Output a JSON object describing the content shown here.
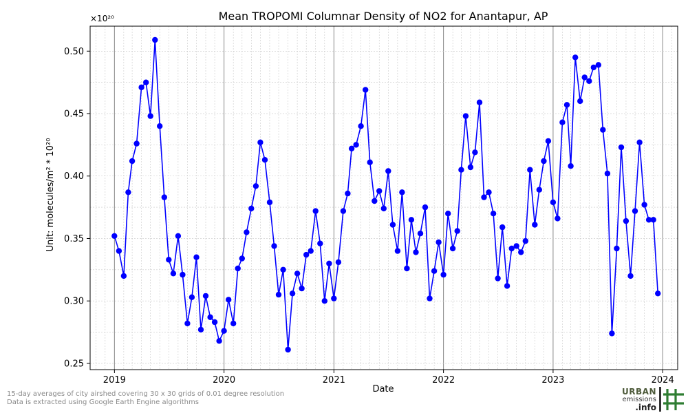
{
  "chart_data": {
    "type": "line",
    "title": "Mean TROPOMI Columnar Density of NO2 for Anantapur, AP",
    "xlabel": "Date",
    "ylabel": "Unit: molecules/m² * 10²⁰",
    "y_multiplier_label": "×10²⁰",
    "x_ticks": [
      "2019",
      "2020",
      "2021",
      "2022",
      "2023",
      "2024"
    ],
    "y_ticks": [
      "0.25",
      "0.30",
      "0.35",
      "0.40",
      "0.45",
      "0.50"
    ],
    "ylim": [
      0.245,
      0.52
    ],
    "xlim": [
      "2018-10-12",
      "2024-02-20"
    ],
    "grid": true,
    "series": [
      {
        "color": "#0000ff",
        "marker": "circle",
        "x": [
          "2019-01-01",
          "2019-01-16",
          "2019-02-01",
          "2019-02-16",
          "2019-03-01",
          "2019-03-16",
          "2019-04-01",
          "2019-04-16",
          "2019-05-01",
          "2019-05-16",
          "2019-06-01",
          "2019-06-16",
          "2019-07-01",
          "2019-07-16",
          "2019-08-01",
          "2019-08-16",
          "2019-09-01",
          "2019-09-16",
          "2019-10-01",
          "2019-10-16",
          "2019-11-01",
          "2019-11-16",
          "2019-12-01",
          "2019-12-16",
          "2020-01-01",
          "2020-01-16",
          "2020-02-01",
          "2020-02-16",
          "2020-03-01",
          "2020-03-16",
          "2020-04-01",
          "2020-04-16",
          "2020-05-01",
          "2020-05-16",
          "2020-06-01",
          "2020-06-16",
          "2020-07-01",
          "2020-07-16",
          "2020-08-01",
          "2020-08-16",
          "2020-09-01",
          "2020-09-16",
          "2020-10-01",
          "2020-10-16",
          "2020-11-01",
          "2020-11-16",
          "2020-12-01",
          "2020-12-16",
          "2021-01-01",
          "2021-01-16",
          "2021-02-01",
          "2021-02-16",
          "2021-03-01",
          "2021-03-16",
          "2021-04-01",
          "2021-04-16",
          "2021-05-01",
          "2021-05-16",
          "2021-06-01",
          "2021-06-16",
          "2021-07-01",
          "2021-07-16",
          "2021-08-01",
          "2021-08-16",
          "2021-09-01",
          "2021-09-16",
          "2021-10-01",
          "2021-10-16",
          "2021-11-01",
          "2021-11-16",
          "2021-12-01",
          "2021-12-16",
          "2022-01-01",
          "2022-01-16",
          "2022-02-01",
          "2022-02-16",
          "2022-03-01",
          "2022-03-16",
          "2022-04-01",
          "2022-04-16",
          "2022-05-01",
          "2022-05-16",
          "2022-06-01",
          "2022-06-16",
          "2022-07-01",
          "2022-07-16",
          "2022-08-01",
          "2022-08-16",
          "2022-09-01",
          "2022-09-16",
          "2022-10-01",
          "2022-10-16",
          "2022-11-01",
          "2022-11-16",
          "2022-12-01",
          "2022-12-16",
          "2023-01-01",
          "2023-01-16",
          "2023-02-01",
          "2023-02-16",
          "2023-03-01",
          "2023-03-16",
          "2023-04-01",
          "2023-04-16",
          "2023-05-01",
          "2023-05-16",
          "2023-06-01",
          "2023-06-16",
          "2023-07-01",
          "2023-07-16",
          "2023-08-01",
          "2023-08-16",
          "2023-09-01",
          "2023-09-16",
          "2023-10-01",
          "2023-10-16",
          "2023-11-01",
          "2023-11-16",
          "2023-12-01",
          "2023-12-16"
        ],
        "y": [
          0.352,
          0.34,
          0.32,
          0.387,
          0.412,
          0.426,
          0.471,
          0.475,
          0.448,
          0.509,
          0.44,
          0.383,
          0.333,
          0.322,
          0.352,
          0.321,
          0.282,
          0.303,
          0.335,
          0.277,
          0.304,
          0.287,
          0.283,
          0.268,
          0.276,
          0.301,
          0.282,
          0.326,
          0.334,
          0.355,
          0.374,
          0.392,
          0.427,
          0.413,
          0.379,
          0.344,
          0.305,
          0.325,
          0.261,
          0.306,
          0.322,
          0.31,
          0.337,
          0.34,
          0.372,
          0.346,
          0.3,
          0.33,
          0.302,
          0.331,
          0.372,
          0.386,
          0.422,
          0.425,
          0.44,
          0.469,
          0.411,
          0.38,
          0.388,
          0.374,
          0.404,
          0.361,
          0.34,
          0.387,
          0.326,
          0.365,
          0.339,
          0.354,
          0.375,
          0.302,
          0.324,
          0.347,
          0.321,
          0.37,
          0.342,
          0.356,
          0.405,
          0.448,
          0.407,
          0.419,
          0.459,
          0.383,
          0.387,
          0.37,
          0.318,
          0.359,
          0.312,
          0.342,
          0.344,
          0.339,
          0.348,
          0.405,
          0.361,
          0.389,
          0.412,
          0.428,
          0.379,
          0.366,
          0.443,
          0.457,
          0.408,
          0.495,
          0.46,
          0.479,
          0.476,
          0.487,
          0.489,
          0.437,
          0.402,
          0.274,
          0.342,
          0.423,
          0.364,
          0.32,
          0.372,
          0.427,
          0.377,
          0.365,
          0.365,
          0.306
        ]
      }
    ]
  },
  "footnotes": {
    "line1": "15-day averages of city airshed covering 30 x 30 grids of 0.01 degree resolution",
    "line2": "Data is extracted using Google Earth Engine algorithms"
  },
  "logo": {
    "line1": "URBAN",
    "line2": "emissions",
    "line3": ".info"
  }
}
